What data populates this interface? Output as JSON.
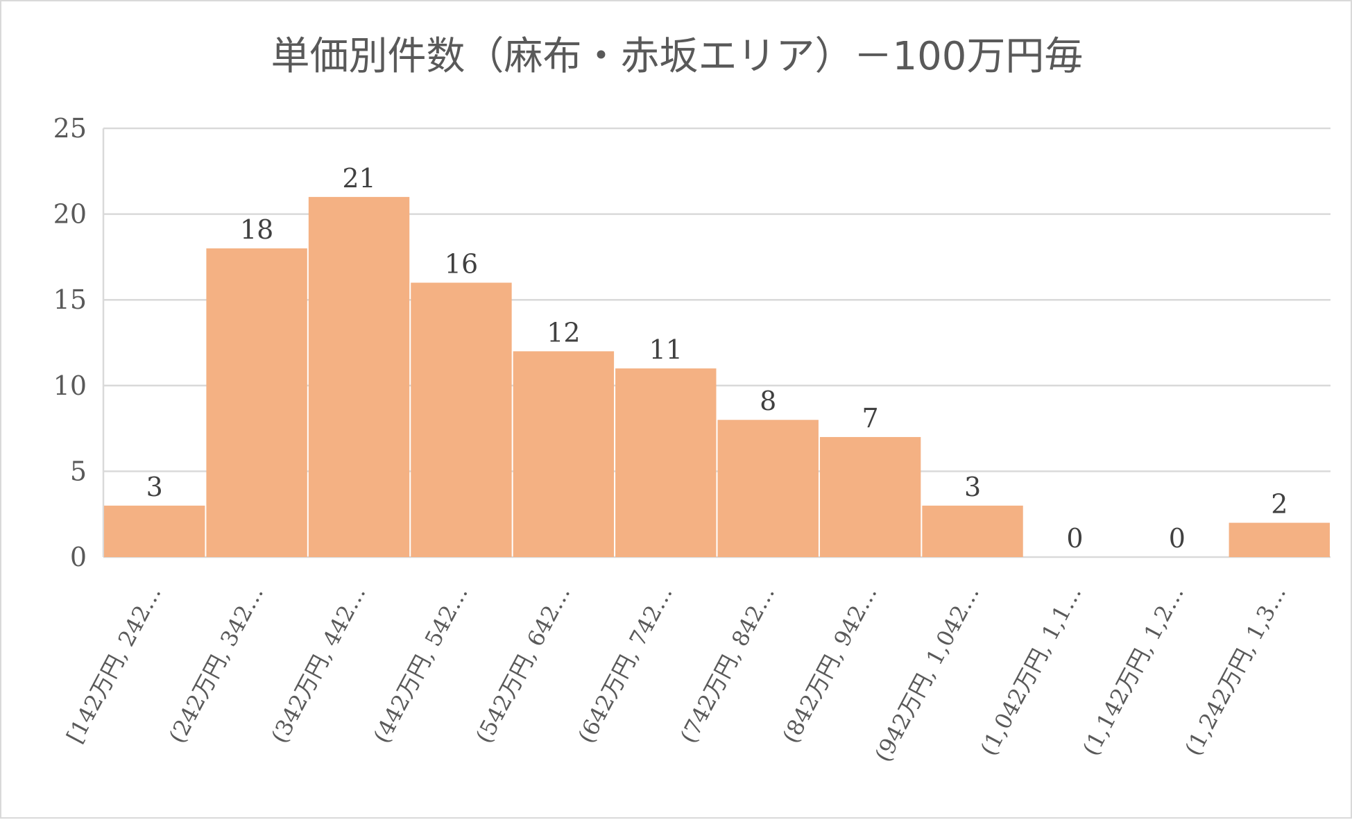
{
  "chart_data": {
    "type": "bar",
    "title": "単価別件数（麻布・赤坂エリア）－100万円毎",
    "xlabel": "",
    "ylabel": "",
    "ylim": [
      0,
      25
    ],
    "yticks": [
      0,
      5,
      10,
      15,
      20,
      25
    ],
    "grid": true,
    "legend": "none",
    "categories": [
      "[142万円, 242…",
      "(242万円, 342…",
      "(342万円, 442…",
      "(442万円, 542…",
      "(542万円, 642…",
      "(642万円, 742…",
      "(742万円, 842…",
      "(842万円, 942…",
      "(942万円, 1,042…",
      "(1,042万円, 1,1…",
      "(1,142万円, 1,2…",
      "(1,242万円, 1,3…"
    ],
    "values": [
      3,
      18,
      21,
      16,
      12,
      11,
      8,
      7,
      3,
      0,
      0,
      2
    ],
    "colors": {
      "bar": "#F4B183",
      "grid": "#D9D9D9",
      "text": "#595959"
    }
  }
}
